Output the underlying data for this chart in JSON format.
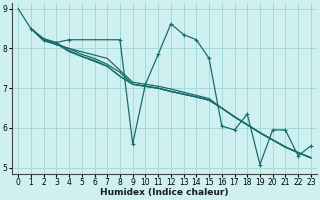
{
  "xlabel": "Humidex (Indice chaleur)",
  "bg_color": "#cff0f0",
  "grid_color": "#a8d8d8",
  "line_color": "#1a6b6b",
  "xlim": [
    -0.5,
    23.5
  ],
  "ylim": [
    4.85,
    9.15
  ],
  "xticks": [
    0,
    1,
    2,
    3,
    4,
    5,
    6,
    7,
    8,
    9,
    10,
    11,
    12,
    13,
    14,
    15,
    16,
    17,
    18,
    19,
    20,
    21,
    22,
    23
  ],
  "yticks": [
    5,
    6,
    7,
    8,
    9
  ],
  "series": [
    {
      "x": [
        0,
        1,
        2,
        3,
        4,
        5,
        6,
        7,
        8,
        9,
        10,
        11,
        12,
        13,
        14,
        15,
        16,
        17,
        18,
        19,
        20,
        21,
        22,
        23
      ],
      "y": [
        9.0,
        8.5,
        8.2,
        8.1,
        8.0,
        7.85,
        7.75,
        7.6,
        7.4,
        7.1,
        7.05,
        7.0,
        6.92,
        6.85,
        6.78,
        6.7,
        6.5,
        6.28,
        6.08,
        5.88,
        5.7,
        5.52,
        5.38,
        5.25
      ],
      "marker": false
    },
    {
      "x": [
        1,
        2,
        3,
        4,
        7,
        9,
        10,
        11,
        12,
        13,
        14,
        15,
        16,
        17,
        18,
        19,
        21,
        22,
        23
      ],
      "y": [
        8.5,
        8.2,
        8.1,
        8.0,
        7.75,
        7.15,
        7.1,
        7.05,
        6.98,
        6.9,
        6.82,
        6.74,
        6.5,
        6.28,
        6.08,
        5.88,
        5.52,
        5.38,
        5.25
      ],
      "marker": false
    },
    {
      "x": [
        1,
        2,
        3,
        4,
        5,
        6,
        7,
        8,
        9,
        10,
        11,
        12,
        13,
        14,
        15,
        16,
        17,
        18,
        19,
        20,
        21,
        22,
        23
      ],
      "y": [
        8.5,
        8.25,
        8.15,
        7.95,
        7.8,
        7.7,
        7.55,
        7.3,
        7.1,
        7.05,
        7.0,
        6.92,
        6.85,
        6.78,
        6.7,
        6.5,
        6.28,
        6.08,
        5.88,
        5.7,
        5.52,
        5.38,
        5.25
      ],
      "marker": false
    },
    {
      "x": [
        1,
        2,
        3,
        4,
        7,
        8,
        9,
        10,
        11,
        12,
        13,
        14,
        15,
        16,
        17,
        18,
        19,
        20,
        21,
        22,
        23
      ],
      "y": [
        8.5,
        8.22,
        8.12,
        7.92,
        7.55,
        7.3,
        7.1,
        7.05,
        7.0,
        6.92,
        6.85,
        6.78,
        6.7,
        6.5,
        6.28,
        6.08,
        5.88,
        5.7,
        5.52,
        5.38,
        5.25
      ],
      "marker": false
    },
    {
      "x": [
        1,
        2,
        3,
        4,
        8,
        9,
        10,
        11,
        12,
        13,
        14,
        15,
        16,
        17,
        18,
        19,
        20,
        21,
        22,
        23
      ],
      "y": [
        8.5,
        8.22,
        8.15,
        8.22,
        8.22,
        5.6,
        7.1,
        7.85,
        8.62,
        8.35,
        8.22,
        7.75,
        6.05,
        5.95,
        6.35,
        5.08,
        5.95,
        5.95,
        5.3,
        5.55
      ],
      "marker": true
    }
  ]
}
